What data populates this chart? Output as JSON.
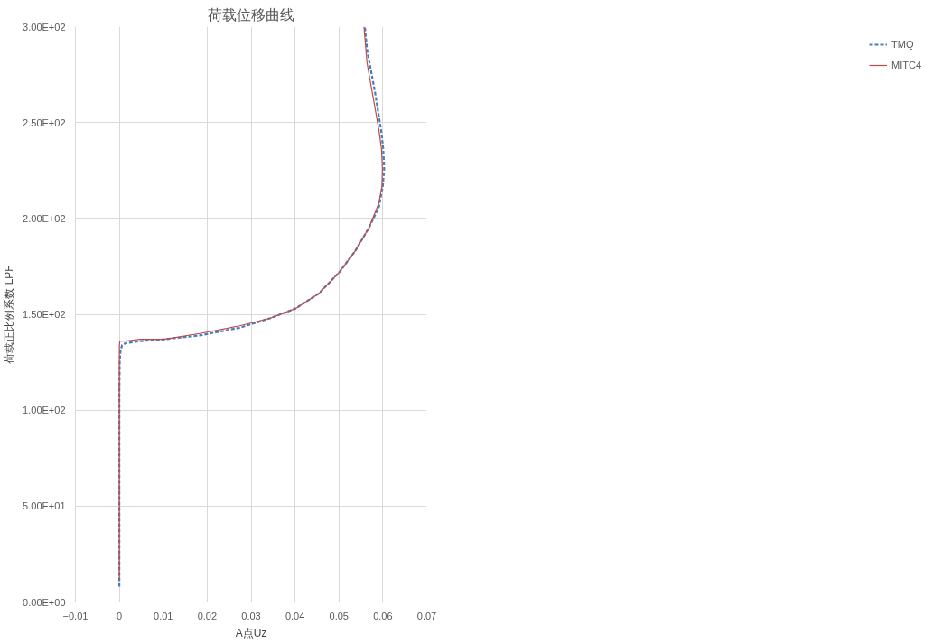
{
  "chart_data": {
    "type": "line",
    "title": "荷载位移曲线",
    "xlabel": "A点Uz",
    "ylabel": "荷载正比例系数 LPF",
    "xlim": [
      -0.01,
      0.07
    ],
    "xticks": [
      -0.01,
      0,
      0.01,
      0.02,
      0.03,
      0.04,
      0.05,
      0.06,
      0.07
    ],
    "ylim": [
      0,
      300
    ],
    "yticks": [
      {
        "value": 0,
        "label": "0.00E+00"
      },
      {
        "value": 50,
        "label": "5.00E+01"
      },
      {
        "value": 100,
        "label": "1.00E+02"
      },
      {
        "value": 150,
        "label": "1.50E+02"
      },
      {
        "value": 200,
        "label": "2.00E+02"
      },
      {
        "value": 250,
        "label": "2.50E+02"
      },
      {
        "value": 300,
        "label": "3.00E+02"
      }
    ],
    "grid": true,
    "legend": "right",
    "marker": "none",
    "series": [
      {
        "name": "TMQ",
        "color": "#4a7ebb",
        "line_style": "dashed",
        "x": [
          0,
          0,
          0,
          9e-05,
          0.00027,
          0.00063,
          0.00154,
          0.0047,
          0.0102,
          0.0183,
          0.0274,
          0.0344,
          0.0401,
          0.0455,
          0.0501,
          0.0537,
          0.0568,
          0.0591,
          0.06,
          0.0603,
          0.0601,
          0.0596,
          0.0582,
          0.0564,
          0.0559
        ],
        "values": [
          8,
          60,
          110,
          126,
          131,
          134,
          135,
          136,
          137,
          139,
          143,
          148,
          153,
          161,
          172,
          183,
          195,
          206,
          217,
          226,
          236,
          246,
          266,
          288,
          300
        ]
      },
      {
        "name": "MITC4",
        "color": "#be4b48",
        "line_style": "solid",
        "x": [
          0,
          0,
          0,
          9e-05,
          0.0011,
          0.0047,
          0.0102,
          0.0183,
          0.0274,
          0.0344,
          0.0401,
          0.0455,
          0.0501,
          0.0537,
          0.0568,
          0.0591,
          0.0598,
          0.0599,
          0.0597,
          0.0591,
          0.0578,
          0.0564,
          0.0557
        ],
        "values": [
          12,
          60,
          133,
          136,
          136,
          137,
          137,
          140,
          144,
          148,
          153,
          161,
          172,
          183,
          195,
          208,
          217,
          226,
          236,
          246,
          263,
          281,
          300
        ]
      }
    ]
  }
}
